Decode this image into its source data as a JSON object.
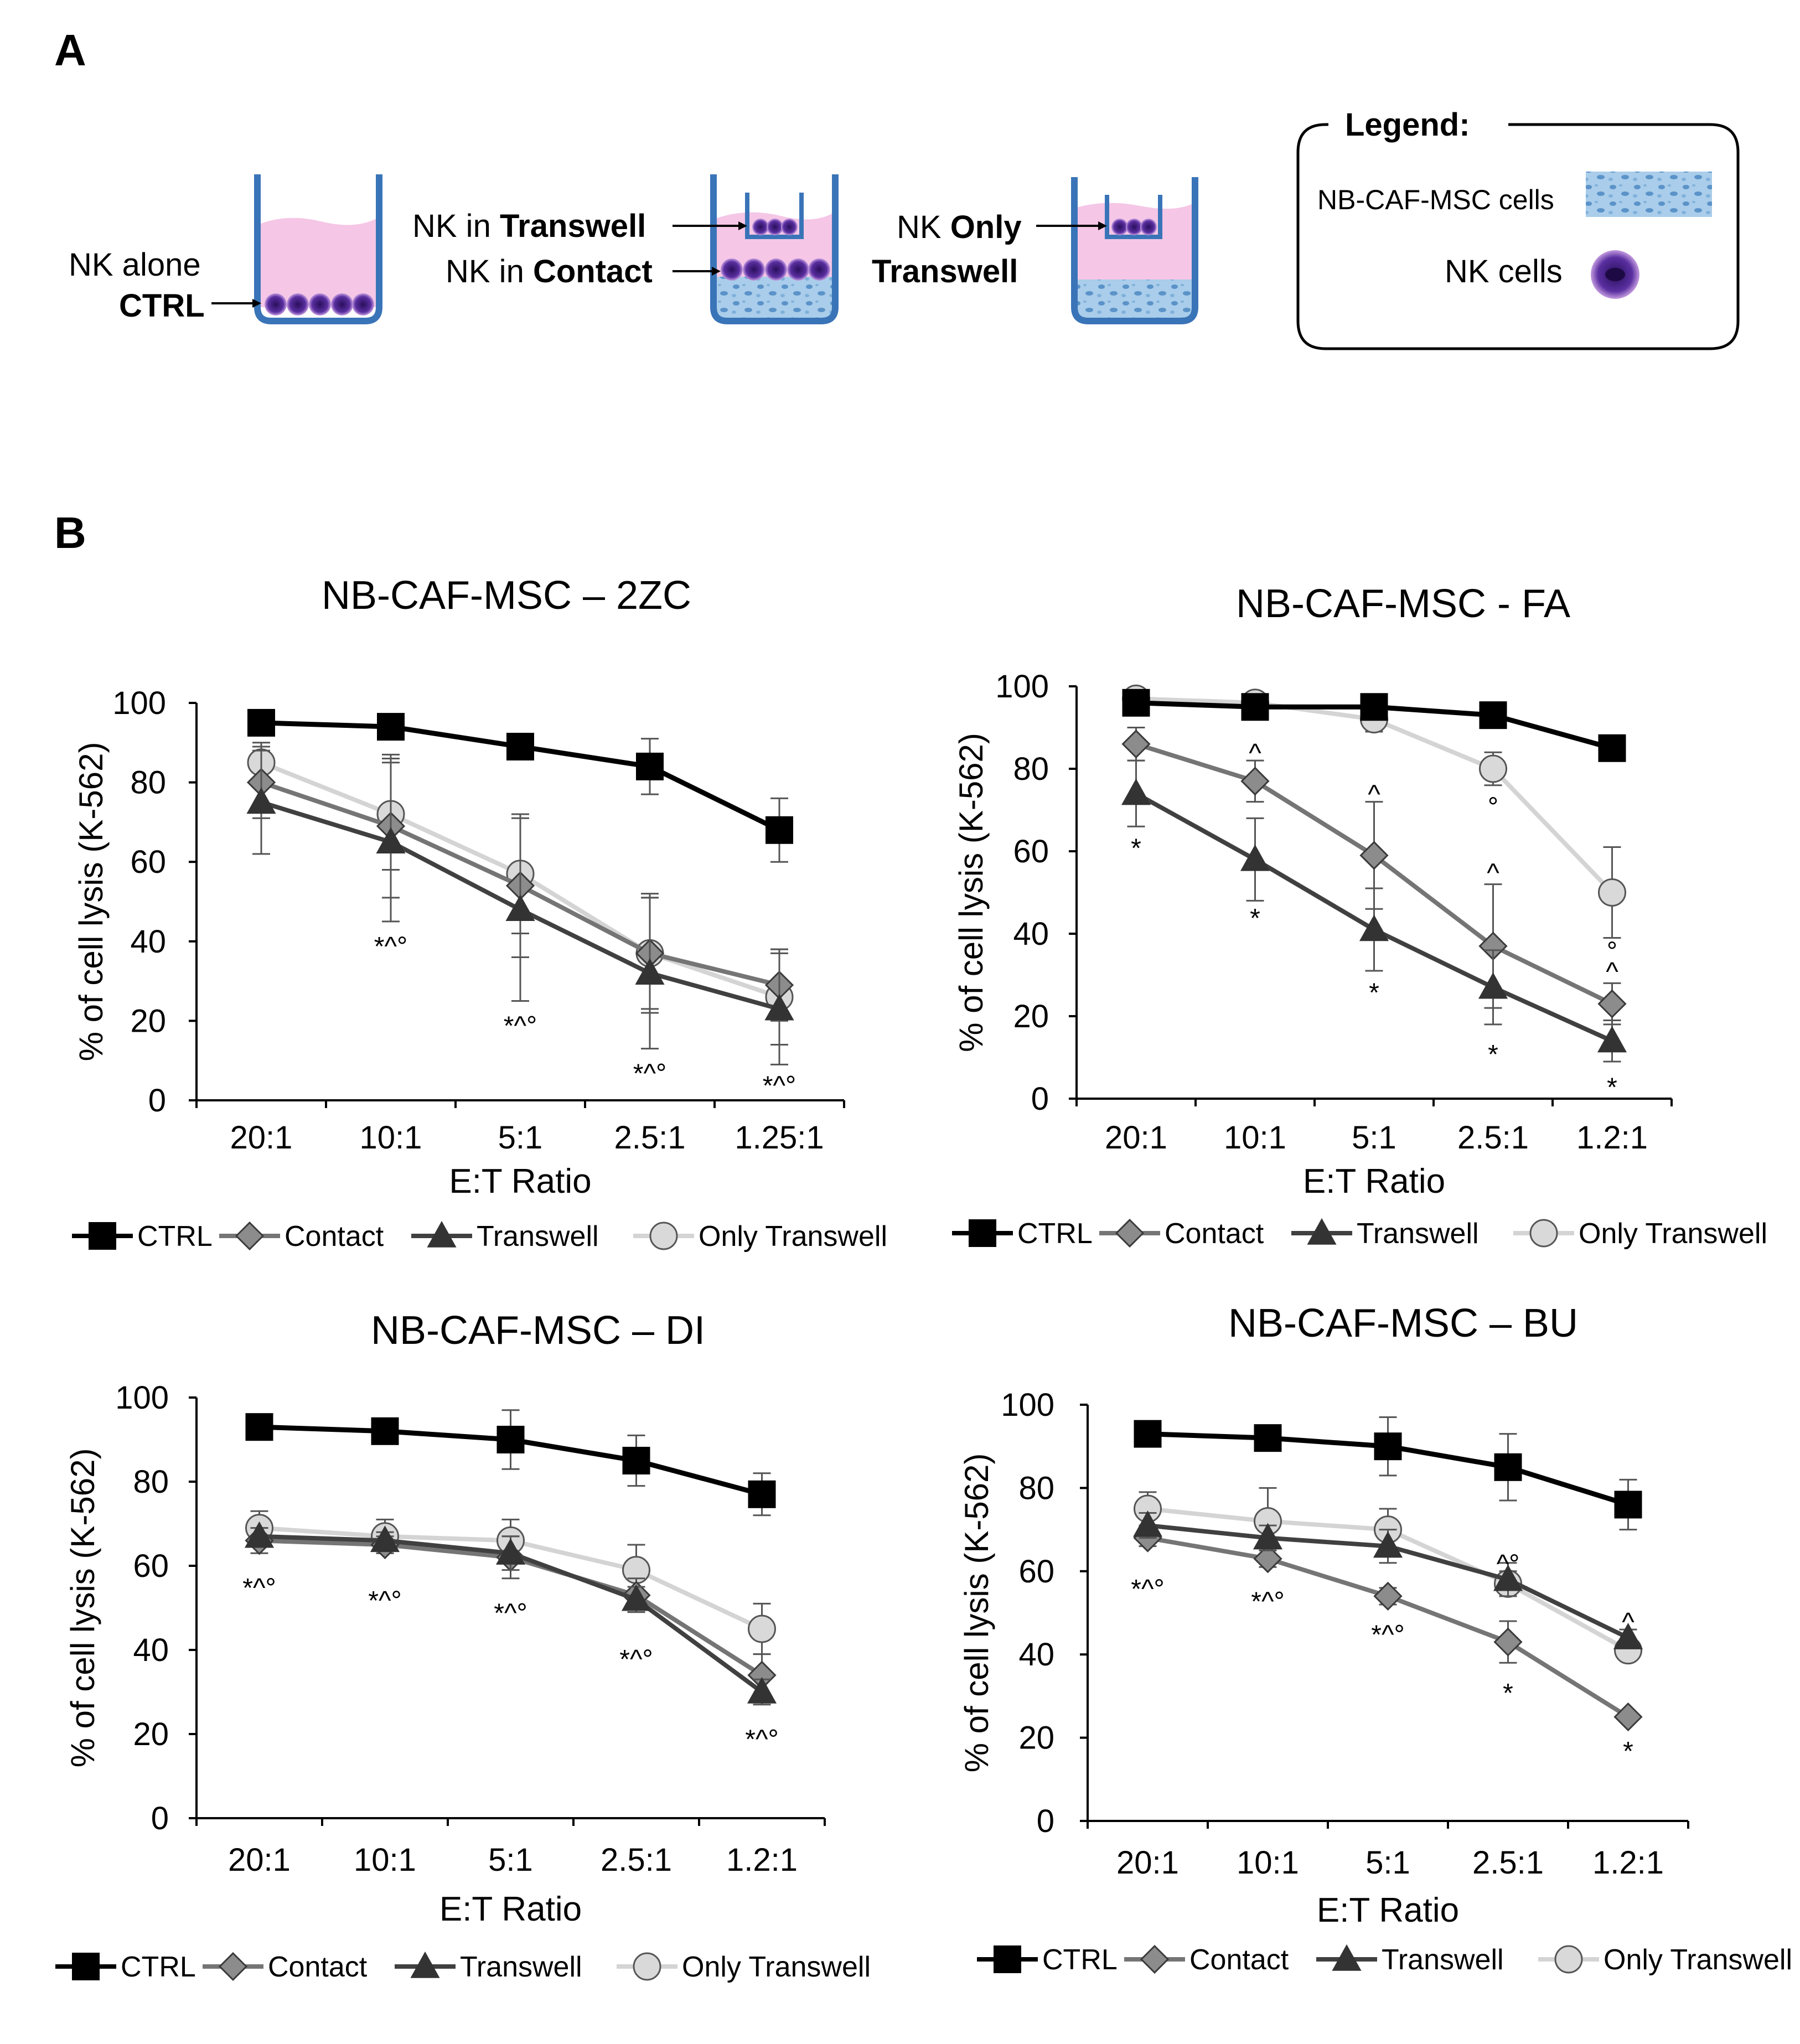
{
  "panel_a": {
    "letter": "A",
    "ctrl": {
      "line1": "NK alone",
      "line2": "CTRL"
    },
    "contact_transwell": {
      "transwell_prefix": "NK in ",
      "transwell_bold": "Transwell",
      "contact_prefix": "NK in ",
      "contact_bold": "Contact"
    },
    "only_transwell": {
      "line1_prefix": "NK ",
      "line1_bold": "Only",
      "line2": "Transwell"
    },
    "legend": {
      "title": "Legend:",
      "item1": "NB-CAF-MSC cells",
      "item2": "NK cells"
    },
    "colors": {
      "well": "#3a74b8",
      "medium": "#f5c6e6",
      "nk": "#4a1f8a",
      "msc": "#9cc3e6"
    }
  },
  "panel_b": {
    "letter": "B"
  },
  "series_styles": {
    "CTRL": {
      "color": "#000000",
      "marker": "square"
    },
    "Contact": {
      "color": "#757575",
      "marker": "diamond"
    },
    "Transwell": {
      "color": "#404040",
      "marker": "triangle"
    },
    "Only Transwell": {
      "color": "#d4d4d4",
      "marker": "circle"
    }
  },
  "chart_data": [
    {
      "type": "line",
      "title": "NB-CAF-MSC – 2ZC",
      "xlabel": "E:T Ratio",
      "ylabel": "% of cell lysis (K-562)",
      "ylim": [
        0,
        100
      ],
      "yticks": [
        "0",
        "20",
        "40",
        "60",
        "80",
        "100"
      ],
      "categories": [
        "20:1",
        "10:1",
        "5:1",
        "2.5:1",
        "1.25:1"
      ],
      "legend": [
        "CTRL",
        "Contact",
        "Transwell",
        "Only Transwell"
      ],
      "series": [
        {
          "name": "CTRL",
          "values": [
            95,
            94,
            89,
            84,
            68
          ],
          "errors": [
            0,
            0,
            0,
            7,
            8
          ]
        },
        {
          "name": "Contact",
          "values": [
            80,
            69,
            54,
            37,
            29
          ],
          "errors": [
            9,
            18,
            18,
            14,
            9
          ]
        },
        {
          "name": "Transwell",
          "values": [
            75,
            65,
            48,
            32,
            23
          ],
          "errors": [
            13,
            20,
            23,
            19,
            14
          ]
        },
        {
          "name": "Only Transwell",
          "values": [
            85,
            72,
            57,
            37,
            26
          ],
          "errors": [
            5,
            14,
            15,
            15,
            12
          ]
        }
      ],
      "annotations": [
        {
          "x": "10:1",
          "y": 39,
          "text": "*^°"
        },
        {
          "x": "5:1",
          "y": 19,
          "text": "*^°"
        },
        {
          "x": "2.5:1",
          "y": 7,
          "text": "*^°"
        },
        {
          "x": "1.25:1",
          "y": 4,
          "text": "*^°"
        }
      ]
    },
    {
      "type": "line",
      "title": "NB-CAF-MSC - FA",
      "xlabel": "E:T Ratio",
      "ylabel": "% of cell lysis (K-562)",
      "ylim": [
        0,
        100
      ],
      "yticks": [
        "0",
        "20",
        "40",
        "60",
        "80",
        "100"
      ],
      "categories": [
        "20:1",
        "10:1",
        "5:1",
        "2.5:1",
        "1.2:1"
      ],
      "legend": [
        "CTRL",
        "Contact",
        "Transwell",
        "Only Transwell"
      ],
      "series": [
        {
          "name": "CTRL",
          "values": [
            96,
            95,
            95,
            93,
            85
          ],
          "errors": [
            0,
            0,
            0,
            0,
            0
          ]
        },
        {
          "name": "Contact",
          "values": [
            86,
            77,
            59,
            37,
            23
          ],
          "errors": [
            4,
            5,
            13,
            15,
            5
          ]
        },
        {
          "name": "Transwell",
          "values": [
            74,
            58,
            41,
            27,
            14
          ],
          "errors": [
            8,
            10,
            10,
            9,
            5
          ]
        },
        {
          "name": "Only Transwell",
          "values": [
            97,
            96,
            92,
            80,
            50
          ],
          "errors": [
            0,
            0,
            3,
            4,
            11
          ]
        }
      ],
      "annotations": [
        {
          "x": "20:1",
          "y": 61,
          "text": "*"
        },
        {
          "x": "10:1",
          "y": 44,
          "text": "*"
        },
        {
          "x": "5:1",
          "y": 26,
          "text": "*"
        },
        {
          "x": "2.5:1",
          "y": 11,
          "text": "*"
        },
        {
          "x": "1.2:1",
          "y": 3,
          "text": "*"
        },
        {
          "x": "10:1",
          "y": 84,
          "text": "^"
        },
        {
          "x": "5:1",
          "y": 74,
          "text": "^"
        },
        {
          "x": "2.5:1",
          "y": 55,
          "text": "^"
        },
        {
          "x": "1.2:1",
          "y": 31,
          "text": "^"
        },
        {
          "x": "2.5:1",
          "y": 71,
          "text": "°"
        },
        {
          "x": "1.2:1",
          "y": 36,
          "text": "°"
        }
      ]
    },
    {
      "type": "line",
      "title": "NB-CAF-MSC – DI",
      "xlabel": "E:T Ratio",
      "ylabel": "% of cell lysis (K-562)",
      "ylim": [
        0,
        100
      ],
      "yticks": [
        "0",
        "20",
        "40",
        "60",
        "80",
        "100"
      ],
      "categories": [
        "20:1",
        "10:1",
        "5:1",
        "2.5:1",
        "1.2:1"
      ],
      "legend": [
        "CTRL",
        "Contact",
        "Transwell",
        "Only Transwell"
      ],
      "series": [
        {
          "name": "CTRL",
          "values": [
            93,
            92,
            90,
            85,
            77
          ],
          "errors": [
            0,
            3,
            7,
            6,
            5
          ]
        },
        {
          "name": "Contact",
          "values": [
            66,
            65,
            62,
            53,
            34
          ],
          "errors": [
            3,
            2,
            5,
            4,
            5
          ]
        },
        {
          "name": "Transwell",
          "values": [
            67,
            66,
            63,
            52,
            30
          ],
          "errors": [
            2,
            2,
            4,
            3,
            3
          ]
        },
        {
          "name": "Only Transwell",
          "values": [
            69,
            67,
            66,
            59,
            45
          ],
          "errors": [
            4,
            4,
            5,
            6,
            6
          ]
        }
      ],
      "annotations": [
        {
          "x": "20:1",
          "y": 55,
          "text": "*^°"
        },
        {
          "x": "10:1",
          "y": 52,
          "text": "*^°"
        },
        {
          "x": "5:1",
          "y": 49,
          "text": "*^°"
        },
        {
          "x": "2.5:1",
          "y": 38,
          "text": "*^°"
        },
        {
          "x": "1.2:1",
          "y": 19,
          "text": "*^°"
        }
      ]
    },
    {
      "type": "line",
      "title": "NB-CAF-MSC – BU",
      "xlabel": "E:T Ratio",
      "ylabel": "% of cell lysis (K-562)",
      "ylim": [
        0,
        100
      ],
      "yticks": [
        "0",
        "20",
        "40",
        "60",
        "80",
        "100"
      ],
      "categories": [
        "20:1",
        "10:1",
        "5:1",
        "2.5:1",
        "1.2:1"
      ],
      "legend": [
        "CTRL",
        "Contact",
        "Transwell",
        "Only Transwell"
      ],
      "series": [
        {
          "name": "CTRL",
          "values": [
            93,
            92,
            90,
            85,
            76
          ],
          "errors": [
            0,
            3,
            7,
            8,
            6
          ]
        },
        {
          "name": "Contact",
          "values": [
            68,
            63,
            54,
            43,
            25
          ],
          "errors": [
            2,
            2,
            2,
            5,
            1
          ]
        },
        {
          "name": "Transwell",
          "values": [
            71,
            68,
            66,
            58,
            44
          ],
          "errors": [
            3,
            3,
            4,
            4,
            2
          ]
        },
        {
          "name": "Only Transwell",
          "values": [
            75,
            72,
            70,
            57,
            41
          ],
          "errors": [
            4,
            8,
            5,
            3,
            2
          ]
        }
      ],
      "annotations": [
        {
          "x": "20:1",
          "y": 56,
          "text": "*^°"
        },
        {
          "x": "10:1",
          "y": 53,
          "text": "*^°"
        },
        {
          "x": "5:1",
          "y": 45,
          "text": "*^°"
        },
        {
          "x": "2.5:1",
          "y": 62,
          "text": "^°"
        },
        {
          "x": "2.5:1",
          "y": 31,
          "text": "*"
        },
        {
          "x": "1.2:1",
          "y": 48,
          "text": "^"
        },
        {
          "x": "1.2:1",
          "y": 17,
          "text": "*"
        }
      ]
    }
  ]
}
